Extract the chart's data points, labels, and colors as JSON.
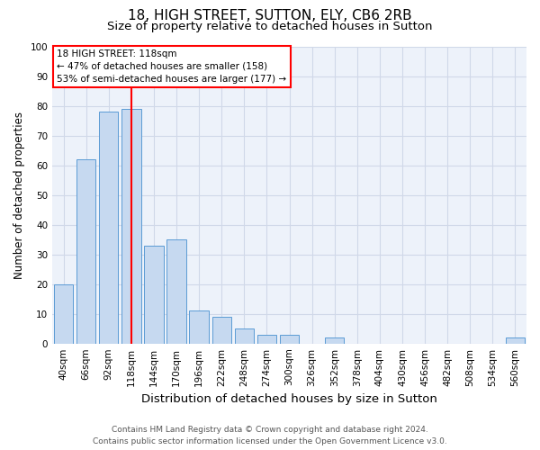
{
  "title1": "18, HIGH STREET, SUTTON, ELY, CB6 2RB",
  "title2": "Size of property relative to detached houses in Sutton",
  "xlabel": "Distribution of detached houses by size in Sutton",
  "ylabel": "Number of detached properties",
  "categories": [
    "40sqm",
    "66sqm",
    "92sqm",
    "118sqm",
    "144sqm",
    "170sqm",
    "196sqm",
    "222sqm",
    "248sqm",
    "274sqm",
    "300sqm",
    "326sqm",
    "352sqm",
    "378sqm",
    "404sqm",
    "430sqm",
    "456sqm",
    "482sqm",
    "508sqm",
    "534sqm",
    "560sqm"
  ],
  "values": [
    20,
    62,
    78,
    79,
    33,
    35,
    11,
    9,
    5,
    3,
    3,
    0,
    2,
    0,
    0,
    0,
    0,
    0,
    0,
    0,
    2
  ],
  "bar_color": "#c6d9f0",
  "bar_edge_color": "#5b9bd5",
  "red_line_index": 3,
  "annotation_line1": "18 HIGH STREET: 118sqm",
  "annotation_line2": "← 47% of detached houses are smaller (158)",
  "annotation_line3": "53% of semi-detached houses are larger (177) →",
  "ylim": [
    0,
    100
  ],
  "yticks": [
    0,
    10,
    20,
    30,
    40,
    50,
    60,
    70,
    80,
    90,
    100
  ],
  "footer1": "Contains HM Land Registry data © Crown copyright and database right 2024.",
  "footer2": "Contains public sector information licensed under the Open Government Licence v3.0.",
  "bg_color": "#edf2fa",
  "grid_color": "#d0d8e8",
  "title1_fontsize": 11,
  "title2_fontsize": 9.5,
  "xlabel_fontsize": 9.5,
  "ylabel_fontsize": 8.5,
  "tick_fontsize": 7.5,
  "footer_fontsize": 6.5
}
